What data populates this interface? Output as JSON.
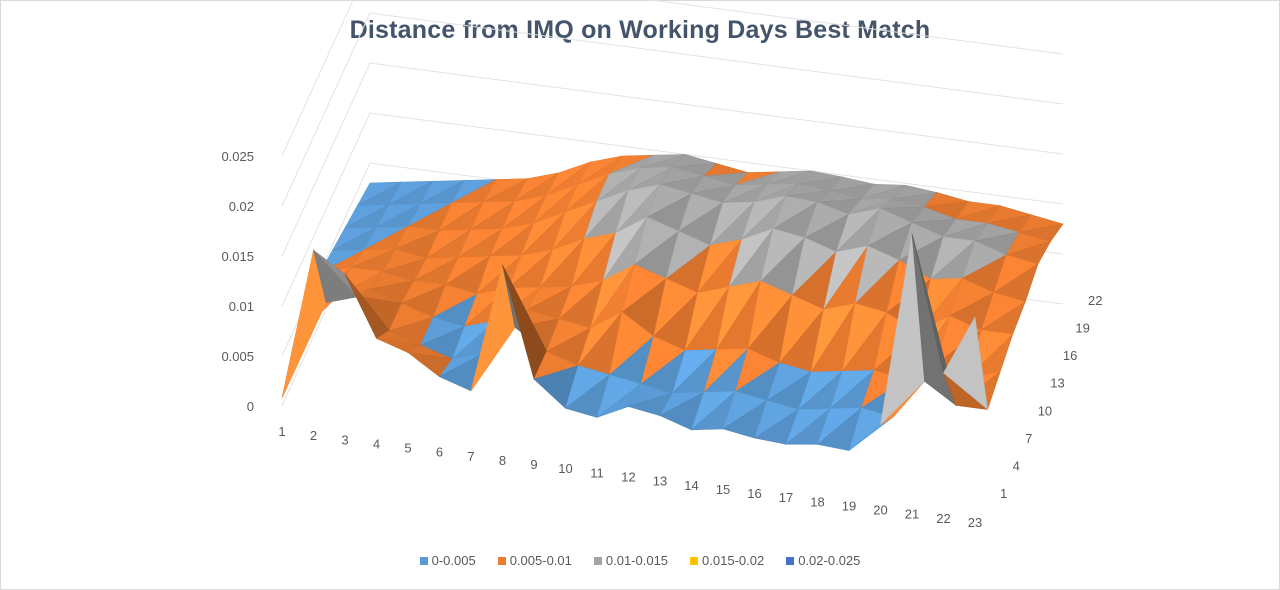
{
  "chart_data": {
    "type": "surface",
    "title": "Distance from IMQ on Working Days Best Match",
    "x_categories": [
      "1",
      "2",
      "3",
      "4",
      "5",
      "6",
      "7",
      "8",
      "9",
      "10",
      "11",
      "12",
      "13",
      "14",
      "15",
      "16",
      "17",
      "18",
      "19",
      "20",
      "21",
      "22",
      "23"
    ],
    "depth_tick_labels": [
      "1",
      "4",
      "7",
      "10",
      "13",
      "16",
      "19",
      "22"
    ],
    "z_axis": {
      "ticks": [
        "0",
        "0.005",
        "0.01",
        "0.015",
        "0.02",
        "0.025"
      ],
      "range": [
        0,
        0.025
      ]
    },
    "legend": {
      "position": "bottom",
      "entries": [
        {
          "name": "0-0.005",
          "color": "#5b9bd5"
        },
        {
          "name": "0.005-0.01",
          "color": "#ed7d31"
        },
        {
          "name": "0.01-0.015",
          "color": "#a5a5a5"
        },
        {
          "name": "0.015-0.02",
          "color": "#ffc000"
        },
        {
          "name": "0.02-0.025",
          "color": "#4472c4"
        }
      ]
    },
    "bands": [
      {
        "min": 0,
        "max": 0.005,
        "color": "#5b9bd5"
      },
      {
        "min": 0.005,
        "max": 0.01,
        "color": "#ed7d31"
      },
      {
        "min": 0.01,
        "max": 0.015,
        "color": "#a5a5a5"
      },
      {
        "min": 0.015,
        "max": 0.02,
        "color": "#ffc000"
      },
      {
        "min": 0.02,
        "max": 0.025,
        "color": "#4472c4"
      }
    ],
    "notable_peaks": [
      {
        "x": 2,
        "depth": 1,
        "z": 0.016
      },
      {
        "x": 3,
        "depth": 1,
        "z": 0.014
      },
      {
        "x": 8,
        "depth": 1,
        "z": 0.017
      },
      {
        "x": 21,
        "depth": 1,
        "z": 0.0255
      },
      {
        "x": 23,
        "depth": 1,
        "z": 0.018
      }
    ],
    "series_values_by_depth": [
      [
        0.0008,
        0.016,
        0.014,
        0.008,
        0.007,
        0.005,
        0.004,
        0.017,
        0.006,
        0.0035,
        0.003,
        0.0045,
        0.004,
        0.003,
        0.0035,
        0.003,
        0.0028,
        0.0032,
        0.003,
        0.006,
        0.0255,
        0.012,
        0.018
      ],
      [
        0.004,
        0.008,
        0.009,
        0.006,
        0.005,
        0.004,
        0.005,
        0.008,
        0.006,
        0.005,
        0.0045,
        0.004,
        0.0035,
        0.004,
        0.0045,
        0.004,
        0.0035,
        0.004,
        0.0045,
        0.004,
        0.008,
        0.006,
        0.006
      ],
      [
        0.005,
        0.006,
        0.007,
        0.006,
        0.005,
        0.0045,
        0.0055,
        0.007,
        0.0065,
        0.006,
        0.008,
        0.006,
        0.005,
        0.0055,
        0.006,
        0.005,
        0.0045,
        0.005,
        0.0055,
        0.005,
        0.007,
        0.006,
        0.007
      ],
      [
        0.005,
        0.006,
        0.006,
        0.0055,
        0.0055,
        0.005,
        0.006,
        0.0065,
        0.007,
        0.008,
        0.01,
        0.009,
        0.008,
        0.009,
        0.01,
        0.009,
        0.008,
        0.009,
        0.0085,
        0.007,
        0.009,
        0.008,
        0.008
      ],
      [
        0.0045,
        0.005,
        0.0055,
        0.005,
        0.0055,
        0.006,
        0.0065,
        0.0075,
        0.009,
        0.01,
        0.012,
        0.011,
        0.01,
        0.011,
        0.0125,
        0.012,
        0.011,
        0.012,
        0.011,
        0.0095,
        0.01,
        0.009,
        0.0085
      ],
      [
        0.004,
        0.0045,
        0.005,
        0.005,
        0.0055,
        0.006,
        0.007,
        0.0085,
        0.01,
        0.0115,
        0.0125,
        0.012,
        0.0115,
        0.012,
        0.013,
        0.0128,
        0.012,
        0.013,
        0.012,
        0.011,
        0.011,
        0.01,
        0.0095
      ],
      [
        0.0035,
        0.004,
        0.0045,
        0.005,
        0.0055,
        0.006,
        0.007,
        0.0085,
        0.01,
        0.011,
        0.0115,
        0.011,
        0.0105,
        0.011,
        0.0115,
        0.0112,
        0.0108,
        0.0112,
        0.0108,
        0.01,
        0.01,
        0.0095,
        0.009
      ],
      [
        0.003,
        0.0035,
        0.004,
        0.0045,
        0.005,
        0.0055,
        0.0065,
        0.008,
        0.009,
        0.0095,
        0.01,
        0.0095,
        0.009,
        0.0095,
        0.01,
        0.0098,
        0.0095,
        0.0098,
        0.0095,
        0.009,
        0.009,
        0.0085,
        0.008
      ]
    ]
  }
}
